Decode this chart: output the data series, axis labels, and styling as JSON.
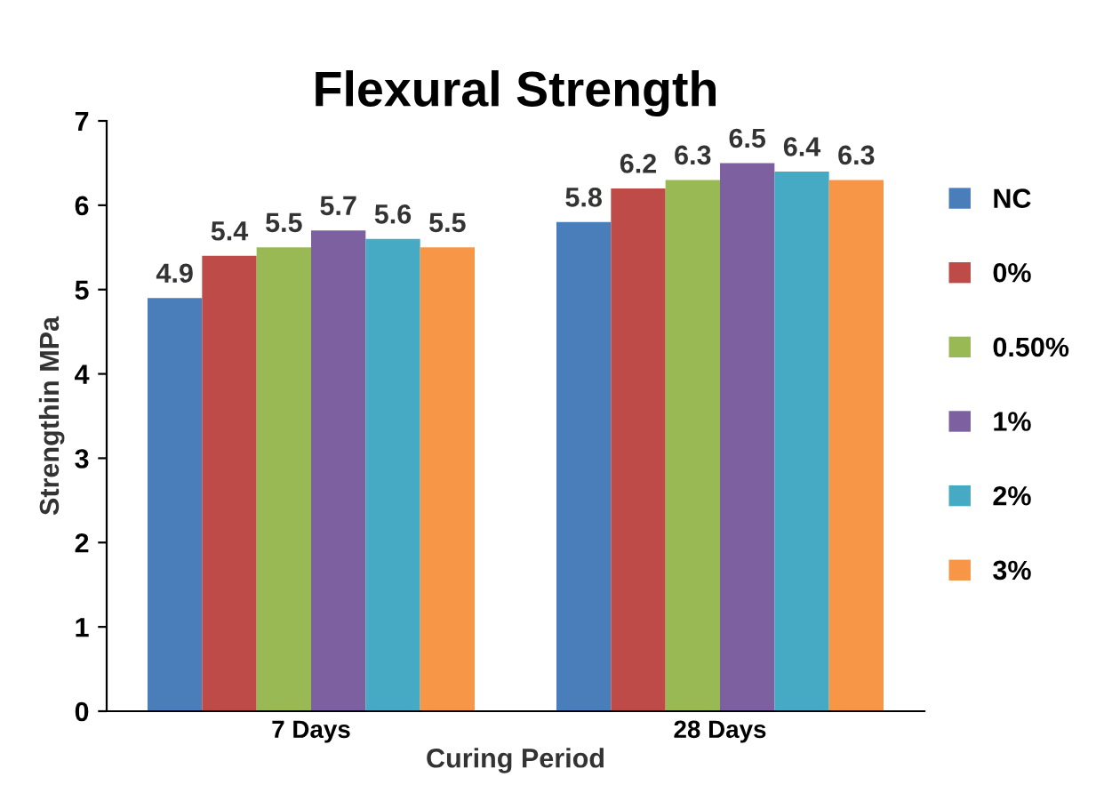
{
  "chart_data": {
    "type": "bar",
    "title": "Flexural Strength",
    "xlabel": "Curing Period",
    "ylabel": "Strengthin MPa",
    "categories": [
      "7 Days",
      "28 Days"
    ],
    "series": [
      {
        "name": "NC",
        "color": "#4a7ebb",
        "values": [
          4.9,
          5.8
        ]
      },
      {
        "name": "0%",
        "color": "#be4b48",
        "values": [
          5.4,
          6.2
        ]
      },
      {
        "name": "0.50%",
        "color": "#98b954",
        "values": [
          5.5,
          6.3
        ]
      },
      {
        "name": "1%",
        "color": "#7d60a0",
        "values": [
          5.7,
          6.5
        ]
      },
      {
        "name": "2%",
        "color": "#46aac5",
        "values": [
          5.6,
          6.4
        ]
      },
      {
        "name": "3%",
        "color": "#f79646",
        "values": [
          5.5,
          6.3
        ]
      }
    ],
    "ylim": [
      0,
      7
    ],
    "yticks": [
      0,
      1,
      2,
      3,
      4,
      5,
      6,
      7
    ],
    "data_labels": true,
    "legend": "right",
    "grid": false
  }
}
